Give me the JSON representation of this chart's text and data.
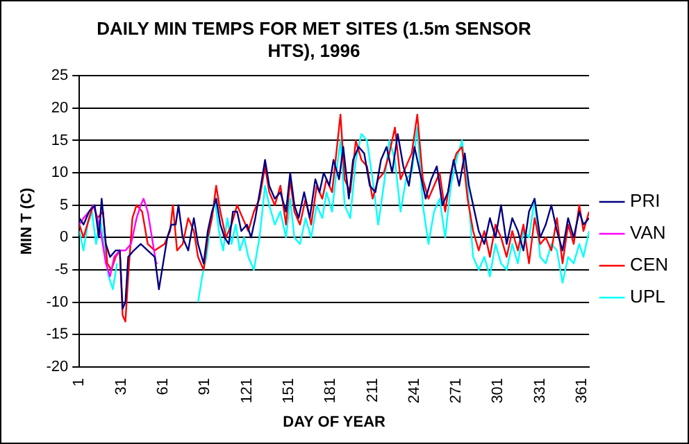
{
  "chart_data": {
    "type": "line",
    "title": "DAILY MIN TEMPS FOR MET SITES (1.5m SENSOR HTS), 1996",
    "xlabel": "DAY OF YEAR",
    "ylabel": "MIN T (C)",
    "xlim": [
      1,
      366
    ],
    "xticks": [
      1,
      31,
      61,
      91,
      121,
      151,
      181,
      211,
      241,
      271,
      301,
      331,
      361
    ],
    "ylim": [
      -20,
      25
    ],
    "yticks": [
      -20,
      -15,
      -10,
      -5,
      0,
      5,
      10,
      15,
      20,
      25
    ],
    "grid": "y",
    "legend": "right",
    "marker": "none",
    "line_style": "solid",
    "series": [
      {
        "name": "PRI",
        "color": "#000080",
        "x": [
          1,
          4,
          8,
          12,
          15,
          17,
          20,
          23,
          27,
          30,
          32,
          34,
          36,
          40,
          45,
          50,
          55,
          58,
          61,
          64,
          67,
          70,
          72,
          75,
          79,
          83,
          86,
          90,
          93,
          96,
          99,
          102,
          105,
          108,
          111,
          114,
          117,
          121,
          124,
          127,
          131,
          134,
          137,
          141,
          145,
          149,
          152,
          155,
          158,
          162,
          166,
          170,
          173,
          176,
          180,
          183,
          187,
          190,
          194,
          197,
          201,
          205,
          209,
          213,
          217,
          221,
          225,
          229,
          233,
          237,
          241,
          245,
          249,
          253,
          257,
          261,
          265,
          269,
          273,
          277,
          280,
          284,
          287,
          291,
          295,
          299,
          303,
          307,
          311,
          315,
          319,
          323,
          327,
          331,
          335,
          339,
          343,
          347,
          351,
          355,
          359,
          362,
          366
        ],
        "values": [
          3,
          2,
          4,
          5,
          0,
          6,
          -1,
          -3,
          -2,
          -2,
          -11,
          -10,
          -3,
          -2,
          -1,
          -2,
          -3,
          -8,
          -4,
          0,
          2,
          2,
          5,
          0,
          -2,
          3,
          -1,
          -4,
          1,
          4,
          6,
          2,
          0,
          -1,
          4,
          4,
          1,
          2,
          0,
          3,
          8,
          12,
          8,
          6,
          7,
          4,
          10,
          5,
          3,
          7,
          3,
          9,
          7,
          10,
          8,
          12,
          9,
          14,
          6,
          12,
          14,
          13,
          8,
          7,
          12,
          14,
          10,
          16,
          11,
          8,
          14,
          10,
          6,
          9,
          11,
          5,
          7,
          12,
          8,
          13,
          8,
          4,
          1,
          -1,
          3,
          0,
          5,
          -1,
          3,
          1,
          -2,
          4,
          6,
          0,
          2,
          5,
          1,
          -2,
          3,
          0,
          4,
          2,
          3
        ]
      },
      {
        "name": "VAN",
        "color": "#ff00ff",
        "x": [
          1,
          4,
          8,
          11,
          14,
          17,
          20,
          23,
          26,
          30,
          34,
          38,
          42,
          45,
          47,
          50,
          53,
          56,
          57
        ],
        "values": [
          2,
          3,
          4,
          5,
          3,
          0,
          -4,
          -6,
          -3,
          -2,
          -2,
          -1,
          3,
          5,
          6,
          4,
          0,
          -4,
          -4
        ]
      },
      {
        "name": "CEN",
        "color": "#ff0000",
        "x": [
          1,
          4,
          8,
          11,
          14,
          18,
          21,
          24,
          27,
          30,
          32,
          34,
          36,
          39,
          42,
          46,
          50,
          55,
          62,
          66,
          68,
          71,
          75,
          79,
          83,
          86,
          90,
          93,
          96,
          99,
          102,
          106,
          110,
          114,
          118,
          122,
          126,
          130,
          134,
          137,
          141,
          145,
          149,
          152,
          155,
          159,
          163,
          167,
          171,
          175,
          178,
          182,
          185,
          188,
          191,
          195,
          199,
          203,
          207,
          211,
          215,
          219,
          223,
          227,
          231,
          235,
          239,
          243,
          247,
          251,
          255,
          259,
          263,
          267,
          271,
          275,
          279,
          283,
          287,
          291,
          295,
          299,
          303,
          307,
          311,
          315,
          319,
          323,
          327,
          331,
          335,
          339,
          343,
          347,
          351,
          355,
          359,
          362,
          366
        ],
        "values": [
          2,
          0,
          3,
          5,
          3,
          4,
          -4,
          -5,
          -3,
          -2,
          -12,
          -13,
          -6,
          3,
          5,
          4,
          -1,
          -2,
          -1,
          1,
          5,
          -2,
          -1,
          3,
          1,
          -3,
          -5,
          0,
          3,
          8,
          4,
          0,
          2,
          5,
          3,
          1,
          4,
          6,
          11,
          7,
          5,
          8,
          2,
          9,
          4,
          2,
          6,
          2,
          8,
          6,
          9,
          7,
          13,
          19,
          9,
          7,
          15,
          12,
          11,
          6,
          9,
          10,
          13,
          17,
          9,
          11,
          13,
          19,
          9,
          6,
          8,
          10,
          4,
          10,
          13,
          14,
          6,
          1,
          -2,
          1,
          -3,
          2,
          0,
          -3,
          1,
          -2,
          2,
          -4,
          3,
          -1,
          0,
          -2,
          3,
          -4,
          2,
          -1,
          5,
          1,
          4
        ]
      },
      {
        "name": "UPL",
        "color": "#00ffff",
        "x": [
          1,
          4,
          7,
          10,
          13,
          16,
          19,
          22,
          25,
          28,
          30,
          86,
          89,
          92,
          95,
          98,
          101,
          104,
          107,
          110,
          113,
          116,
          119,
          122,
          126,
          130,
          134,
          137,
          141,
          145,
          149,
          152,
          155,
          159,
          163,
          167,
          171,
          175,
          178,
          182,
          185,
          188,
          191,
          195,
          199,
          203,
          207,
          211,
          215,
          219,
          223,
          227,
          231,
          235,
          239,
          243,
          247,
          251,
          255,
          259,
          263,
          267,
          271,
          275,
          279,
          283,
          287,
          291,
          295,
          299,
          303,
          307,
          311,
          315,
          319,
          323,
          327,
          331,
          335,
          339,
          343,
          347,
          351,
          355,
          359,
          362,
          366
        ],
        "values": [
          1,
          -2,
          2,
          4,
          -1,
          3,
          -2,
          -6,
          -8,
          -4,
          null,
          -10,
          -6,
          -3,
          2,
          6,
          1,
          -2,
          3,
          -1,
          2,
          -2,
          0,
          -3,
          -5,
          0,
          8,
          5,
          2,
          4,
          0,
          6,
          0,
          -1,
          3,
          0,
          5,
          3,
          7,
          4,
          10,
          15,
          5,
          3,
          12,
          16,
          15,
          9,
          2,
          8,
          15,
          12,
          4,
          9,
          10,
          17,
          5,
          -1,
          4,
          6,
          0,
          8,
          12,
          15,
          8,
          -3,
          -5,
          -3,
          -6,
          -1,
          -4,
          -5,
          -1,
          -4,
          1,
          0,
          6,
          -3,
          -4,
          -1,
          -2,
          -7,
          -3,
          -4,
          -1,
          -3,
          1
        ]
      }
    ]
  }
}
